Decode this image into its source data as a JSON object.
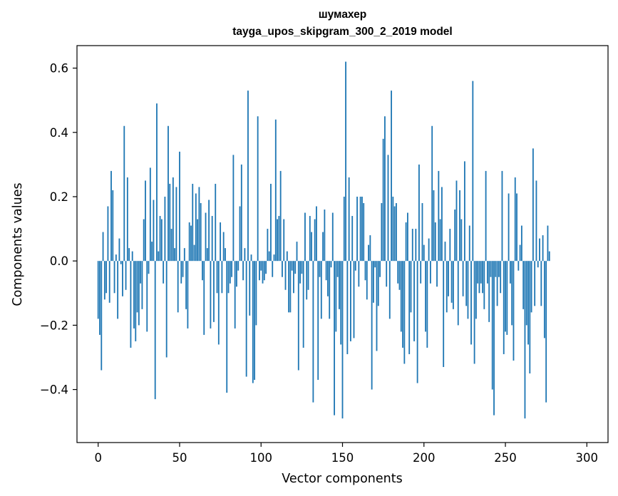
{
  "chart_data": {
    "type": "bar",
    "title": "шумахер",
    "subtitle": "tayga_upos_skipgram_300_2_2019 model",
    "xlabel": "Vector components",
    "ylabel": "Components values",
    "xlim": [
      -13,
      313
    ],
    "ylim": [
      -0.565,
      0.67
    ],
    "xticks": [
      0,
      50,
      100,
      150,
      200,
      250,
      300
    ],
    "yticks": [
      -0.4,
      -0.2,
      0.0,
      0.2,
      0.4,
      0.6
    ],
    "grid": false,
    "bar_color": "#1f77b4",
    "values": [
      -0.18,
      -0.23,
      -0.34,
      0.09,
      -0.12,
      -0.1,
      0.17,
      -0.13,
      0.28,
      0.22,
      -0.1,
      0.02,
      -0.18,
      0.07,
      -0.01,
      -0.11,
      0.42,
      -0.09,
      0.26,
      0.04,
      -0.27,
      0.03,
      -0.21,
      -0.25,
      -0.16,
      -0.2,
      -0.07,
      -0.15,
      0.13,
      0.25,
      -0.22,
      -0.04,
      0.29,
      0.06,
      0.19,
      -0.43,
      0.49,
      0.03,
      0.14,
      0.13,
      -0.07,
      0.2,
      -0.3,
      0.42,
      0.24,
      0.1,
      0.26,
      0.04,
      0.23,
      -0.16,
      0.34,
      -0.07,
      -0.05,
      0.04,
      -0.15,
      -0.21,
      0.12,
      0.11,
      0.24,
      0.05,
      0.21,
      0.13,
      0.23,
      0.18,
      -0.06,
      -0.23,
      0.15,
      0.04,
      0.19,
      -0.21,
      0.14,
      -0.19,
      0.24,
      -0.1,
      -0.26,
      0.12,
      -0.1,
      0.09,
      0.04,
      -0.41,
      -0.1,
      -0.07,
      -0.05,
      0.33,
      -0.21,
      -0.08,
      -0.03,
      0.17,
      0.3,
      -0.06,
      0.04,
      -0.36,
      0.53,
      -0.17,
      0.02,
      -0.38,
      -0.37,
      -0.2,
      0.45,
      -0.06,
      -0.03,
      -0.07,
      -0.06,
      -0.04,
      0.1,
      0.03,
      0.24,
      -0.05,
      0.02,
      0.44,
      0.13,
      0.14,
      0.28,
      -0.05,
      0.13,
      -0.09,
      0.03,
      -0.16,
      -0.16,
      -0.03,
      -0.1,
      -0.04,
      0.06,
      -0.34,
      -0.07,
      -0.04,
      -0.27,
      0.15,
      -0.12,
      -0.09,
      0.14,
      0.09,
      -0.44,
      0.13,
      0.17,
      -0.37,
      -0.05,
      -0.18,
      0.09,
      0.16,
      -0.06,
      -0.11,
      -0.18,
      -0.02,
      0.15,
      -0.48,
      -0.22,
      -0.05,
      -0.15,
      -0.26,
      -0.49,
      0.2,
      0.62,
      -0.29,
      0.26,
      -0.25,
      0.14,
      -0.24,
      -0.03,
      0.2,
      -0.08,
      0.2,
      0.2,
      0.18,
      -0.06,
      -0.12,
      0.05,
      0.08,
      -0.4,
      -0.13,
      -0.02,
      -0.28,
      -0.14,
      -0.05,
      0.18,
      0.38,
      0.45,
      -0.08,
      0.33,
      -0.18,
      0.53,
      0.2,
      0.17,
      0.18,
      -0.07,
      -0.09,
      -0.22,
      -0.27,
      -0.32,
      0.12,
      0.15,
      -0.29,
      -0.16,
      0.1,
      -0.25,
      0.1,
      -0.38,
      0.3,
      -0.07,
      0.18,
      0.05,
      -0.22,
      -0.27,
      0.07,
      -0.07,
      0.42,
      0.22,
      0.12,
      -0.08,
      0.28,
      0.13,
      0.23,
      -0.33,
      0.06,
      -0.16,
      -0.11,
      0.1,
      -0.13,
      -0.15,
      0.16,
      0.25,
      -0.2,
      0.22,
      0.13,
      -0.11,
      0.31,
      -0.14,
      -0.18,
      0.11,
      -0.26,
      0.56,
      -0.32,
      -0.18,
      -0.07,
      -0.1,
      -0.07,
      -0.1,
      -0.15,
      0.28,
      -0.07,
      -0.19,
      -0.05,
      -0.4,
      -0.48,
      -0.05,
      -0.14,
      -0.05,
      -0.1,
      0.28,
      -0.29,
      -0.22,
      -0.23,
      0.21,
      -0.07,
      -0.2,
      -0.31,
      0.26,
      0.21,
      -0.03,
      0.05,
      0.11,
      -0.15,
      -0.49,
      -0.2,
      -0.26,
      -0.35,
      -0.16,
      0.35,
      -0.14,
      0.25,
      -0.02,
      0.07,
      -0.14,
      0.08,
      -0.24,
      -0.44,
      0.11,
      0.03
    ]
  }
}
